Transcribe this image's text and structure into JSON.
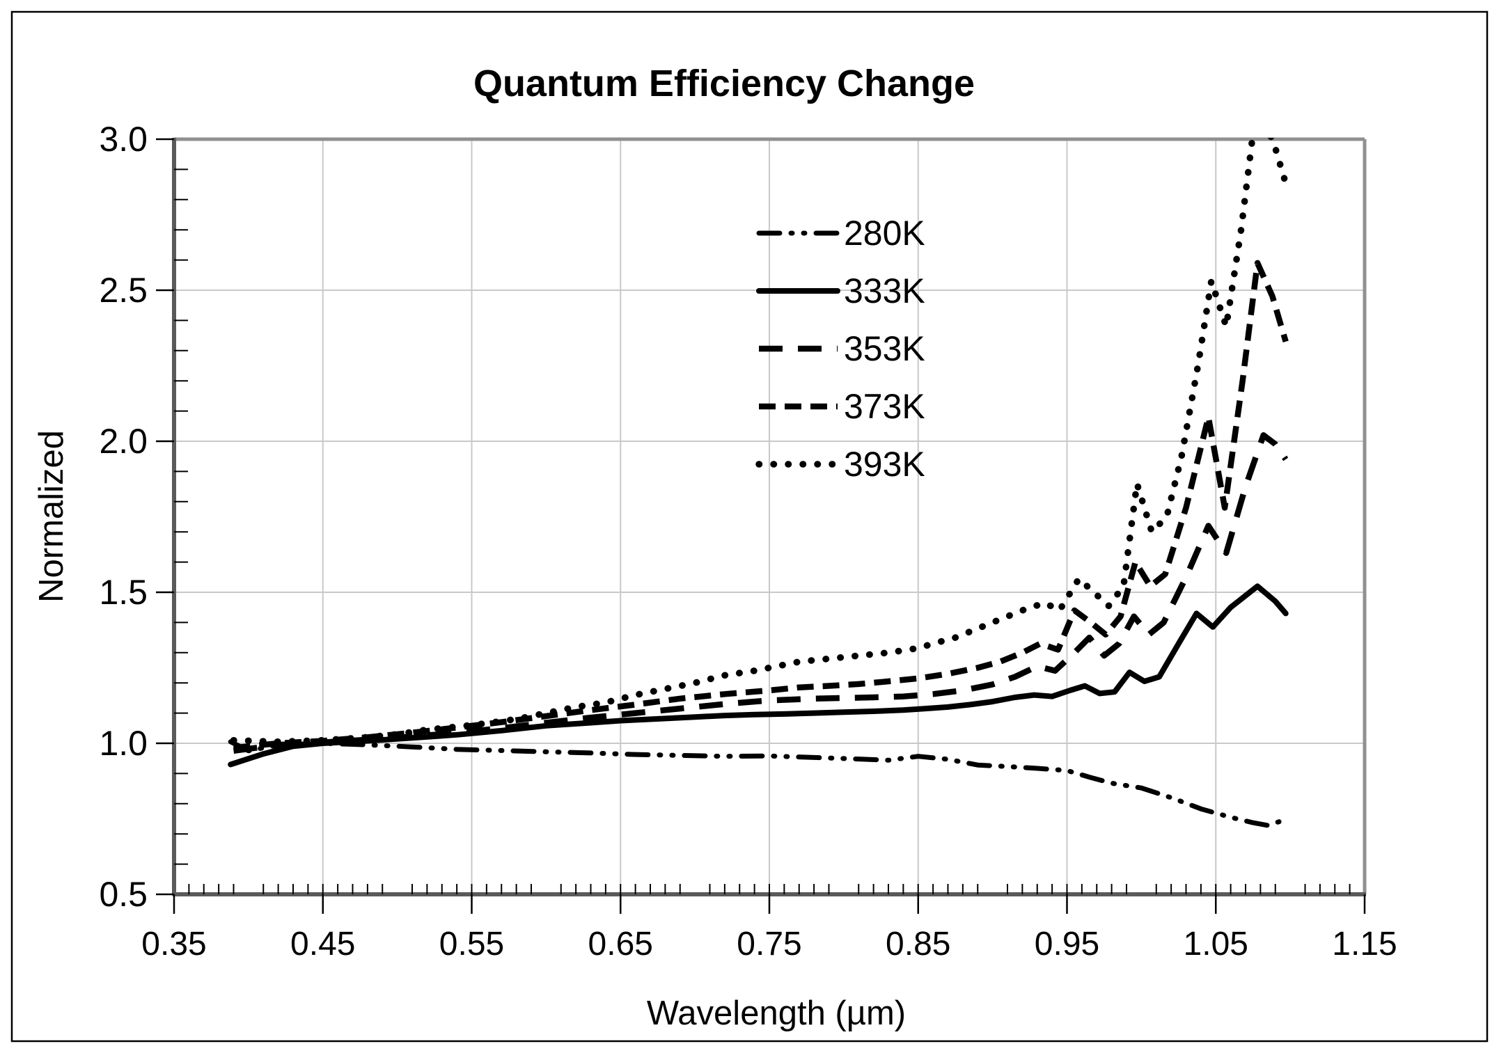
{
  "title": "Quantum Efficiency Change",
  "colors": {
    "line": "#000000",
    "grid": "#c8c8c8",
    "frame_light": "#909090",
    "axis_dark": "#5a5a5a",
    "figure_border": "#000000",
    "background": "#ffffff",
    "text": "#000000"
  },
  "x_axis": {
    "label": "Wavelength (µm)",
    "min": 0.35,
    "max": 1.15,
    "tick_labels": [
      "0.35",
      "0.45",
      "0.55",
      "0.65",
      "0.75",
      "0.85",
      "0.95",
      "1.05",
      "1.15"
    ],
    "tick_values": [
      0.35,
      0.45,
      0.55,
      0.65,
      0.75,
      0.85,
      0.95,
      1.05,
      1.15
    ],
    "gridline_values": [
      0.45,
      0.55,
      0.65,
      0.75,
      0.85,
      0.95,
      1.05
    ],
    "minor_step": 0.01
  },
  "y_axis": {
    "label": "Normalized",
    "min": 0.5,
    "max": 3.0,
    "tick_labels": [
      "0.5",
      "1.0",
      "1.5",
      "2.0",
      "2.5",
      "3.0"
    ],
    "tick_values": [
      0.5,
      1.0,
      1.5,
      2.0,
      2.5,
      3.0
    ],
    "gridline_values": [
      1.0,
      1.5,
      2.0,
      2.5
    ],
    "minor_step": 0.1
  },
  "legend": {
    "position": "inside-upper-middle",
    "items": [
      {
        "label": "280K",
        "style": "dash-dot-dot"
      },
      {
        "label": "333K",
        "style": "solid"
      },
      {
        "label": "353K",
        "style": "long-dash"
      },
      {
        "label": "373K",
        "style": "dash"
      },
      {
        "label": "393K",
        "style": "dotted"
      }
    ]
  },
  "chart_data": {
    "type": "line",
    "title": "Quantum Efficiency Change",
    "xlabel": "Wavelength (µm)",
    "ylabel": "Normalized",
    "xlim": [
      0.35,
      1.15
    ],
    "ylim": [
      0.5,
      3.0
    ],
    "grid": true,
    "legend_position": "upper middle, inside plot",
    "series": [
      {
        "name": "280K",
        "style": "dash-dot-dot",
        "points": [
          [
            0.388,
            1.005
          ],
          [
            0.4,
            0.975
          ],
          [
            0.42,
            0.995
          ],
          [
            0.45,
            1.0
          ],
          [
            0.48,
            0.995
          ],
          [
            0.51,
            0.988
          ],
          [
            0.54,
            0.98
          ],
          [
            0.57,
            0.976
          ],
          [
            0.6,
            0.972
          ],
          [
            0.63,
            0.968
          ],
          [
            0.66,
            0.963
          ],
          [
            0.69,
            0.96
          ],
          [
            0.72,
            0.957
          ],
          [
            0.75,
            0.958
          ],
          [
            0.78,
            0.953
          ],
          [
            0.81,
            0.948
          ],
          [
            0.83,
            0.944
          ],
          [
            0.85,
            0.957
          ],
          [
            0.87,
            0.947
          ],
          [
            0.89,
            0.928
          ],
          [
            0.91,
            0.923
          ],
          [
            0.93,
            0.917
          ],
          [
            0.95,
            0.91
          ],
          [
            0.965,
            0.888
          ],
          [
            0.98,
            0.868
          ],
          [
            1.0,
            0.852
          ],
          [
            1.02,
            0.82
          ],
          [
            1.04,
            0.783
          ],
          [
            1.06,
            0.755
          ],
          [
            1.075,
            0.737
          ],
          [
            1.085,
            0.728
          ],
          [
            1.097,
            0.748
          ]
        ]
      },
      {
        "name": "333K",
        "style": "solid",
        "points": [
          [
            0.388,
            0.93
          ],
          [
            0.41,
            0.965
          ],
          [
            0.43,
            0.99
          ],
          [
            0.45,
            1.0
          ],
          [
            0.48,
            1.008
          ],
          [
            0.51,
            1.018
          ],
          [
            0.54,
            1.028
          ],
          [
            0.57,
            1.042
          ],
          [
            0.6,
            1.058
          ],
          [
            0.63,
            1.068
          ],
          [
            0.65,
            1.075
          ],
          [
            0.68,
            1.082
          ],
          [
            0.7,
            1.087
          ],
          [
            0.72,
            1.092
          ],
          [
            0.74,
            1.095
          ],
          [
            0.76,
            1.097
          ],
          [
            0.78,
            1.1
          ],
          [
            0.8,
            1.103
          ],
          [
            0.82,
            1.106
          ],
          [
            0.84,
            1.11
          ],
          [
            0.855,
            1.115
          ],
          [
            0.87,
            1.12
          ],
          [
            0.885,
            1.128
          ],
          [
            0.9,
            1.138
          ],
          [
            0.915,
            1.152
          ],
          [
            0.928,
            1.16
          ],
          [
            0.94,
            1.155
          ],
          [
            0.952,
            1.175
          ],
          [
            0.962,
            1.19
          ],
          [
            0.972,
            1.165
          ],
          [
            0.982,
            1.17
          ],
          [
            0.992,
            1.235
          ],
          [
            1.002,
            1.205
          ],
          [
            1.012,
            1.22
          ],
          [
            1.025,
            1.33
          ],
          [
            1.037,
            1.43
          ],
          [
            1.048,
            1.385
          ],
          [
            1.06,
            1.45
          ],
          [
            1.078,
            1.52
          ],
          [
            1.09,
            1.47
          ],
          [
            1.097,
            1.43
          ]
        ]
      },
      {
        "name": "353K",
        "style": "long-dash",
        "points": [
          [
            0.39,
            0.975
          ],
          [
            0.42,
            0.995
          ],
          [
            0.45,
            1.003
          ],
          [
            0.48,
            1.012
          ],
          [
            0.51,
            1.022
          ],
          [
            0.54,
            1.035
          ],
          [
            0.57,
            1.05
          ],
          [
            0.6,
            1.068
          ],
          [
            0.63,
            1.085
          ],
          [
            0.66,
            1.1
          ],
          [
            0.69,
            1.115
          ],
          [
            0.72,
            1.13
          ],
          [
            0.75,
            1.142
          ],
          [
            0.78,
            1.148
          ],
          [
            0.8,
            1.15
          ],
          [
            0.82,
            1.152
          ],
          [
            0.84,
            1.155
          ],
          [
            0.86,
            1.163
          ],
          [
            0.88,
            1.175
          ],
          [
            0.9,
            1.195
          ],
          [
            0.915,
            1.22
          ],
          [
            0.93,
            1.255
          ],
          [
            0.942,
            1.24
          ],
          [
            0.955,
            1.3
          ],
          [
            0.965,
            1.35
          ],
          [
            0.975,
            1.29
          ],
          [
            0.985,
            1.33
          ],
          [
            0.995,
            1.42
          ],
          [
            1.005,
            1.36
          ],
          [
            1.015,
            1.4
          ],
          [
            1.03,
            1.55
          ],
          [
            1.045,
            1.72
          ],
          [
            1.057,
            1.63
          ],
          [
            1.07,
            1.85
          ],
          [
            1.082,
            2.02
          ],
          [
            1.09,
            1.99
          ],
          [
            1.097,
            1.94
          ]
        ]
      },
      {
        "name": "373K",
        "style": "dash",
        "points": [
          [
            0.39,
            0.985
          ],
          [
            0.42,
            1.0
          ],
          [
            0.45,
            1.008
          ],
          [
            0.48,
            1.02
          ],
          [
            0.51,
            1.035
          ],
          [
            0.54,
            1.052
          ],
          [
            0.57,
            1.07
          ],
          [
            0.6,
            1.09
          ],
          [
            0.63,
            1.11
          ],
          [
            0.66,
            1.128
          ],
          [
            0.69,
            1.148
          ],
          [
            0.72,
            1.163
          ],
          [
            0.75,
            1.175
          ],
          [
            0.77,
            1.185
          ],
          [
            0.79,
            1.19
          ],
          [
            0.81,
            1.196
          ],
          [
            0.83,
            1.205
          ],
          [
            0.85,
            1.215
          ],
          [
            0.87,
            1.23
          ],
          [
            0.89,
            1.25
          ],
          [
            0.905,
            1.27
          ],
          [
            0.92,
            1.3
          ],
          [
            0.932,
            1.33
          ],
          [
            0.944,
            1.31
          ],
          [
            0.955,
            1.44
          ],
          [
            0.966,
            1.4
          ],
          [
            0.976,
            1.36
          ],
          [
            0.986,
            1.42
          ],
          [
            0.996,
            1.6
          ],
          [
            1.006,
            1.52
          ],
          [
            1.016,
            1.56
          ],
          [
            1.03,
            1.78
          ],
          [
            1.045,
            2.08
          ],
          [
            1.056,
            1.78
          ],
          [
            1.068,
            2.2
          ],
          [
            1.078,
            2.59
          ],
          [
            1.088,
            2.48
          ],
          [
            1.097,
            2.33
          ]
        ]
      },
      {
        "name": "393K",
        "style": "dotted",
        "points": [
          [
            0.39,
            1.01
          ],
          [
            0.42,
            1.005
          ],
          [
            0.45,
            1.01
          ],
          [
            0.48,
            1.02
          ],
          [
            0.5,
            1.03
          ],
          [
            0.52,
            1.045
          ],
          [
            0.55,
            1.06
          ],
          [
            0.58,
            1.08
          ],
          [
            0.6,
            1.1
          ],
          [
            0.62,
            1.12
          ],
          [
            0.64,
            1.135
          ],
          [
            0.66,
            1.16
          ],
          [
            0.68,
            1.18
          ],
          [
            0.7,
            1.2
          ],
          [
            0.72,
            1.225
          ],
          [
            0.74,
            1.24
          ],
          [
            0.75,
            1.25
          ],
          [
            0.77,
            1.27
          ],
          [
            0.79,
            1.28
          ],
          [
            0.81,
            1.29
          ],
          [
            0.83,
            1.3
          ],
          [
            0.85,
            1.315
          ],
          [
            0.86,
            1.33
          ],
          [
            0.875,
            1.35
          ],
          [
            0.89,
            1.38
          ],
          [
            0.9,
            1.4
          ],
          [
            0.92,
            1.44
          ],
          [
            0.935,
            1.465
          ],
          [
            0.945,
            1.44
          ],
          [
            0.958,
            1.545
          ],
          [
            0.968,
            1.5
          ],
          [
            0.978,
            1.455
          ],
          [
            0.988,
            1.52
          ],
          [
            0.997,
            1.86
          ],
          [
            1.007,
            1.7
          ],
          [
            1.017,
            1.75
          ],
          [
            1.027,
            1.95
          ],
          [
            1.038,
            2.25
          ],
          [
            1.047,
            2.53
          ],
          [
            1.057,
            2.38
          ],
          [
            1.067,
            2.7
          ],
          [
            1.075,
            3.02
          ],
          [
            1.083,
            3.06
          ],
          [
            1.09,
            2.97
          ],
          [
            1.096,
            2.87
          ]
        ]
      }
    ]
  }
}
